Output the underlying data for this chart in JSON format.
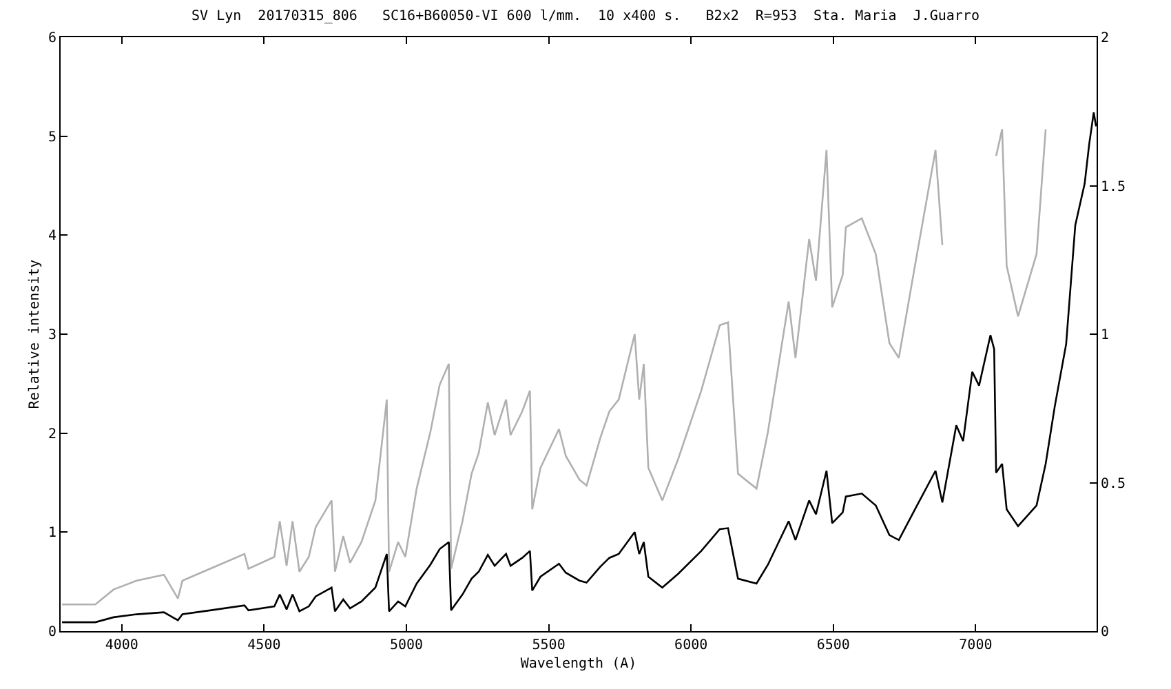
{
  "chart_data": {
    "type": "line",
    "title": "SV Lyn  20170315_806   SC16+B60050-VI 600 l/mm.  10 x400 s.   B2x2  R=953  Sta. Maria  J.Guarro",
    "xlabel": "Wavelength (A)",
    "ylabel": "Relative intensity",
    "x": [
      3790,
      3907,
      3971,
      4052,
      4148,
      4197,
      4213,
      4310,
      4431,
      4445,
      4536,
      4555,
      4579,
      4600,
      4624,
      4657,
      4681,
      4737,
      4749,
      4778,
      4802,
      4842,
      4891,
      4931,
      4939,
      4971,
      4996,
      5036,
      5084,
      5117,
      5149,
      5157,
      5197,
      5229,
      5254,
      5286,
      5310,
      5350,
      5366,
      5407,
      5434,
      5442,
      5471,
      5536,
      5560,
      5608,
      5633,
      5681,
      5713,
      5746,
      5802,
      5818,
      5834,
      5850,
      5899,
      5955,
      6036,
      6101,
      6130,
      6165,
      6230,
      6270,
      6343,
      6367,
      6415,
      6439,
      6476,
      6496,
      6533,
      6544,
      6600,
      6649,
      6697,
      6730,
      6794,
      6859,
      6883,
      6932,
      6956,
      6988,
      7012,
      7052,
      7065,
      7072,
      7093,
      7109,
      7149,
      7214,
      7246,
      7278,
      7318,
      7350,
      7383,
      7399,
      7415,
      7423
    ],
    "series": [
      {
        "color": "#000000",
        "values": [
          0.09,
          0.09,
          0.14,
          0.17,
          0.19,
          0.11,
          0.17,
          0.21,
          0.26,
          0.21,
          0.25,
          0.37,
          0.22,
          0.37,
          0.2,
          0.25,
          0.35,
          0.44,
          0.2,
          0.32,
          0.23,
          0.3,
          0.44,
          0.78,
          0.2,
          0.3,
          0.25,
          0.48,
          0.67,
          0.83,
          0.9,
          0.21,
          0.37,
          0.53,
          0.6,
          0.77,
          0.66,
          0.78,
          0.66,
          0.74,
          0.81,
          0.41,
          0.55,
          0.68,
          0.59,
          0.51,
          0.49,
          0.65,
          0.74,
          0.78,
          1.0,
          0.78,
          0.9,
          0.55,
          0.44,
          0.58,
          0.81,
          1.03,
          1.04,
          0.53,
          0.48,
          0.67,
          1.11,
          0.92,
          1.32,
          1.18,
          1.62,
          1.09,
          1.2,
          1.36,
          1.39,
          1.27,
          0.97,
          0.92,
          1.27,
          1.62,
          1.3,
          2.08,
          1.92,
          2.62,
          2.48,
          2.99,
          2.85,
          1.6,
          1.69,
          1.23,
          1.06,
          1.27,
          1.69,
          2.27,
          2.9,
          4.1,
          4.52,
          4.92,
          5.24,
          5.1
        ]
      },
      {
        "color": "#b0b0b0",
        "axis": "y2",
        "values": [
          0.09,
          0.09,
          0.14,
          0.17,
          0.19,
          0.11,
          0.17,
          0.21,
          0.26,
          0.21,
          0.25,
          0.37,
          0.22,
          0.37,
          0.2,
          0.25,
          0.35,
          0.44,
          0.2,
          0.32,
          0.23,
          0.3,
          0.44,
          0.78,
          0.2,
          0.3,
          0.25,
          0.48,
          0.67,
          0.83,
          0.9,
          0.21,
          0.37,
          0.53,
          0.6,
          0.77,
          0.66,
          0.78,
          0.66,
          0.74,
          0.81,
          0.41,
          0.55,
          0.68,
          0.59,
          0.51,
          0.49,
          0.65,
          0.74,
          0.78,
          1.0,
          0.78,
          0.9,
          0.55,
          0.44,
          0.58,
          0.81,
          1.03,
          1.04,
          0.53,
          0.48,
          0.67,
          1.11,
          0.92,
          1.32,
          1.18,
          1.62,
          1.09,
          1.2,
          1.36,
          1.39,
          1.27,
          0.97,
          0.92,
          1.27,
          1.62,
          1.3,
          null,
          null,
          null,
          null,
          null,
          null,
          1.6,
          1.69,
          1.23,
          1.06,
          1.27,
          1.69,
          null,
          null,
          null,
          null,
          null,
          null,
          null
        ]
      }
    ],
    "xlim": [
      3785,
      7425
    ],
    "xticks": [
      4000,
      4500,
      5000,
      5500,
      6000,
      6500,
      7000
    ],
    "ylim": [
      0,
      6
    ],
    "yticks": [
      0,
      1,
      2,
      3,
      4,
      5,
      6
    ],
    "y2lim": [
      0,
      2
    ],
    "y2ticks": [
      0,
      0.5,
      1,
      1.5,
      2
    ],
    "grid": false
  }
}
